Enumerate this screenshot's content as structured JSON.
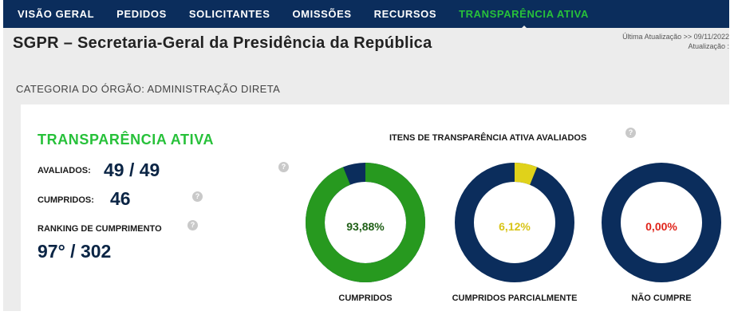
{
  "nav": {
    "items": [
      {
        "label": "VISÃO GERAL"
      },
      {
        "label": "PEDIDOS"
      },
      {
        "label": "SOLICITANTES"
      },
      {
        "label": "OMISSÕES"
      },
      {
        "label": "RECURSOS"
      },
      {
        "label": "TRANSPARÊNCIA ATIVA"
      }
    ],
    "active_index": 5
  },
  "header": {
    "title": "SGPR – Secretaria-Geral da Presidência da República",
    "last_update": "Última Atualização >> 09/11/2022",
    "update_line2": "Atualização :"
  },
  "category": "CATEGORIA DO ÓRGÃO: ADMINISTRAÇÃO DIRETA",
  "transparency": {
    "title": "TRANSPARÊNCIA ATIVA",
    "evaluated_label": "AVALIADOS:",
    "evaluated_value": "49 / 49",
    "fulfilled_label": "CUMPRIDOS:",
    "fulfilled_value": "46",
    "ranking_label": "RANKING DE CUMPRIMENTO",
    "ranking_value": "97° / 302",
    "help_glyph": "?"
  },
  "chart_data": {
    "type": "donut",
    "title": "ITENS DE TRANSPARÊNCIA ATIVA AVALIADOS",
    "charts": [
      {
        "name": "CUMPRIDOS",
        "value_label": "93,88%",
        "fraction": 0.9388,
        "color": "#27991f",
        "pct_color": "#1f5f16"
      },
      {
        "name": "CUMPRIDOS PARCIALMENTE",
        "value_label": "6,12%",
        "fraction": 0.0612,
        "color": "#e0d21a",
        "pct_color": "#d8c418"
      },
      {
        "name": "NÃO CUMPRE",
        "value_label": "0,00%",
        "fraction": 0.0,
        "color": "#e0241a",
        "pct_color": "#e0241a"
      }
    ],
    "remainder_color": "#0b2d5c"
  }
}
